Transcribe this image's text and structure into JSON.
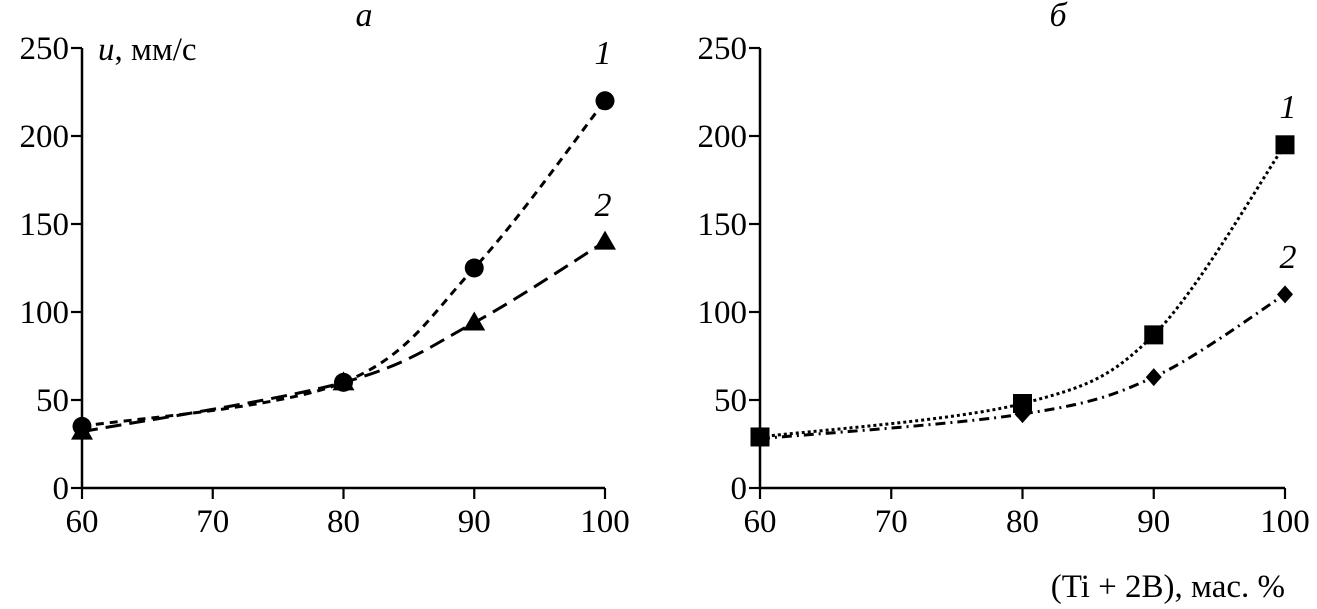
{
  "chart_data": [
    {
      "type": "line",
      "panel_label": "а",
      "ylabel_var": "u",
      "ylabel_unit": ", мм/с",
      "xlabel": "",
      "x": [
        60,
        80,
        90,
        100
      ],
      "xlim": [
        60,
        100
      ],
      "ylim": [
        0,
        250
      ],
      "xticks": [
        "60",
        "70",
        "80",
        "90",
        "100"
      ],
      "yticks": [
        "0",
        "50",
        "100",
        "150",
        "200",
        "250"
      ],
      "grid": false,
      "series": [
        {
          "name": "1",
          "marker": "circle",
          "line": "dashed",
          "values": [
            35,
            60,
            125,
            220
          ]
        },
        {
          "name": "2",
          "marker": "triangle",
          "line": "long-dashed",
          "values": [
            32,
            60,
            94,
            140
          ]
        }
      ]
    },
    {
      "type": "line",
      "panel_label": "б",
      "ylabel_var": "",
      "ylabel_unit": "",
      "xlabel": "(Ti + 2B), мас. %",
      "x": [
        60,
        80,
        90,
        100
      ],
      "xlim": [
        60,
        100
      ],
      "ylim": [
        0,
        250
      ],
      "xticks": [
        "60",
        "70",
        "80",
        "90",
        "100"
      ],
      "yticks": [
        "0",
        "50",
        "100",
        "150",
        "200",
        "250"
      ],
      "grid": false,
      "series": [
        {
          "name": "1",
          "marker": "square",
          "line": "dotted",
          "values": [
            29,
            48,
            87,
            195
          ]
        },
        {
          "name": "2",
          "marker": "diamond",
          "line": "dash-dot",
          "values": [
            28,
            42,
            63,
            110
          ]
        }
      ]
    }
  ]
}
